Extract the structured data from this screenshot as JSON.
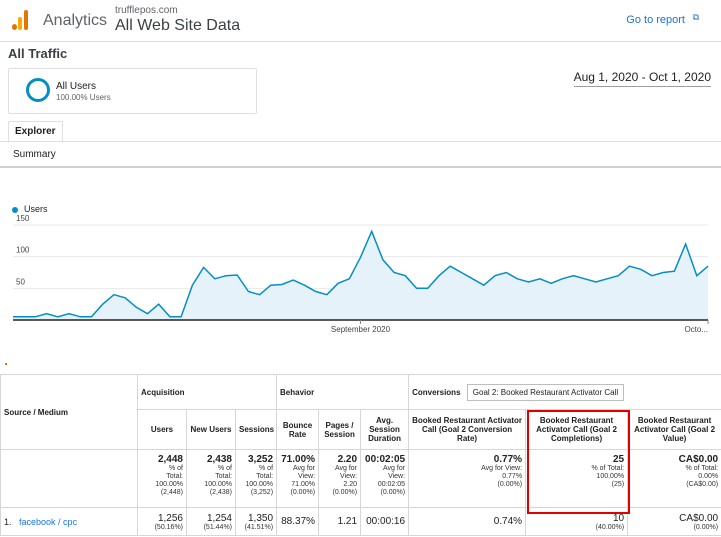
{
  "header": {
    "app_name": "Analytics",
    "account_domain": "trufflepos.com",
    "account_view": "All Web Site Data",
    "goto_report": "Go to report",
    "goto_icon": "external-link-icon"
  },
  "page": {
    "title": "All Traffic",
    "segment_name": "All Users",
    "segment_pct": "100.00% Users",
    "date_range": "Aug 1, 2020 - Oct 1, 2020",
    "tab_explorer": "Explorer",
    "subtab_summary": "Summary"
  },
  "chart_data": {
    "type": "area",
    "series": [
      {
        "name": "Users",
        "values": [
          5,
          5,
          5,
          10,
          5,
          10,
          5,
          5,
          25,
          40,
          35,
          20,
          10,
          25,
          5,
          5,
          55,
          83,
          65,
          70,
          71,
          45,
          40,
          55,
          56,
          63,
          55,
          45,
          40,
          58,
          65,
          99,
          140,
          95,
          75,
          70,
          50,
          50,
          70,
          85,
          75,
          65,
          55,
          70,
          75,
          65,
          60,
          65,
          58,
          65,
          70,
          65,
          60,
          65,
          70,
          85,
          80,
          70,
          75,
          77,
          120,
          70,
          85
        ]
      }
    ],
    "x_ticks": [
      "September 2020",
      "Octo..."
    ],
    "y_ticks": [
      150,
      100,
      50
    ],
    "ylim": [
      0,
      150
    ],
    "color": "#058dc7",
    "fill_color": "#e6f2fa"
  },
  "table": {
    "first_col_header": "Source / Medium",
    "groups": {
      "acquisition": "Acquisition",
      "behavior": "Behavior",
      "conversions": "Conversions",
      "goal_select": "Goal 2: Booked Restaurant Activator Call"
    },
    "columns": [
      "Users",
      "New Users",
      "Sessions",
      "Bounce Rate",
      "Pages / Session",
      "Avg. Session Duration",
      "Booked Restaurant Activator Call (Goal 2 Conversion Rate)",
      "Booked Restaurant Activator Call (Goal 2 Completions)",
      "Booked Restaurant Activator Call (Goal 2 Value)"
    ],
    "totals": [
      {
        "value": "2,448",
        "l1": "% of",
        "l2": "Total:",
        "l3": "100.00%",
        "l4": "(2,448)"
      },
      {
        "value": "2,438",
        "l1": "% of",
        "l2": "Total:",
        "l3": "100.00%",
        "l4": "(2,438)"
      },
      {
        "value": "3,252",
        "l1": "% of",
        "l2": "Total:",
        "l3": "100.00%",
        "l4": "(3,252)"
      },
      {
        "value": "71.00%",
        "l1": "Avg for",
        "l2": "View:",
        "l3": "71.00%",
        "l4": "(0.00%)"
      },
      {
        "value": "2.20",
        "l1": "Avg for",
        "l2": "View:",
        "l3": "2.20",
        "l4": "(0.00%)"
      },
      {
        "value": "00:02:05",
        "l1": "Avg for",
        "l2": "View:",
        "l3": "00:02:05",
        "l4": "(0.00%)"
      },
      {
        "value": "0.77%",
        "l1": "Avg for View:",
        "l2": "0.77%",
        "l3": "(0.00%)",
        "l4": ""
      },
      {
        "value": "25",
        "l1": "% of Total:",
        "l2": "100.00%",
        "l3": "(25)",
        "l4": ""
      },
      {
        "value": "CA$0.00",
        "l1": "% of Total:",
        "l2": "0.00%",
        "l3": "(CA$0.00)",
        "l4": ""
      }
    ],
    "row1": {
      "index": "1.",
      "source": "facebook / cpc",
      "cells": [
        {
          "value": "1,256",
          "sub": "(50.16%)"
        },
        {
          "value": "1,254",
          "sub": "(51.44%)"
        },
        {
          "value": "1,350",
          "sub": "(41.51%)"
        },
        {
          "value": "88.37%",
          "sub": ""
        },
        {
          "value": "1.21",
          "sub": ""
        },
        {
          "value": "00:00:16",
          "sub": ""
        },
        {
          "value": "0.74%",
          "sub": ""
        },
        {
          "value": "10",
          "sub": "(40.00%)"
        },
        {
          "value": "CA$0.00",
          "sub": "(0.00%)"
        }
      ]
    }
  }
}
